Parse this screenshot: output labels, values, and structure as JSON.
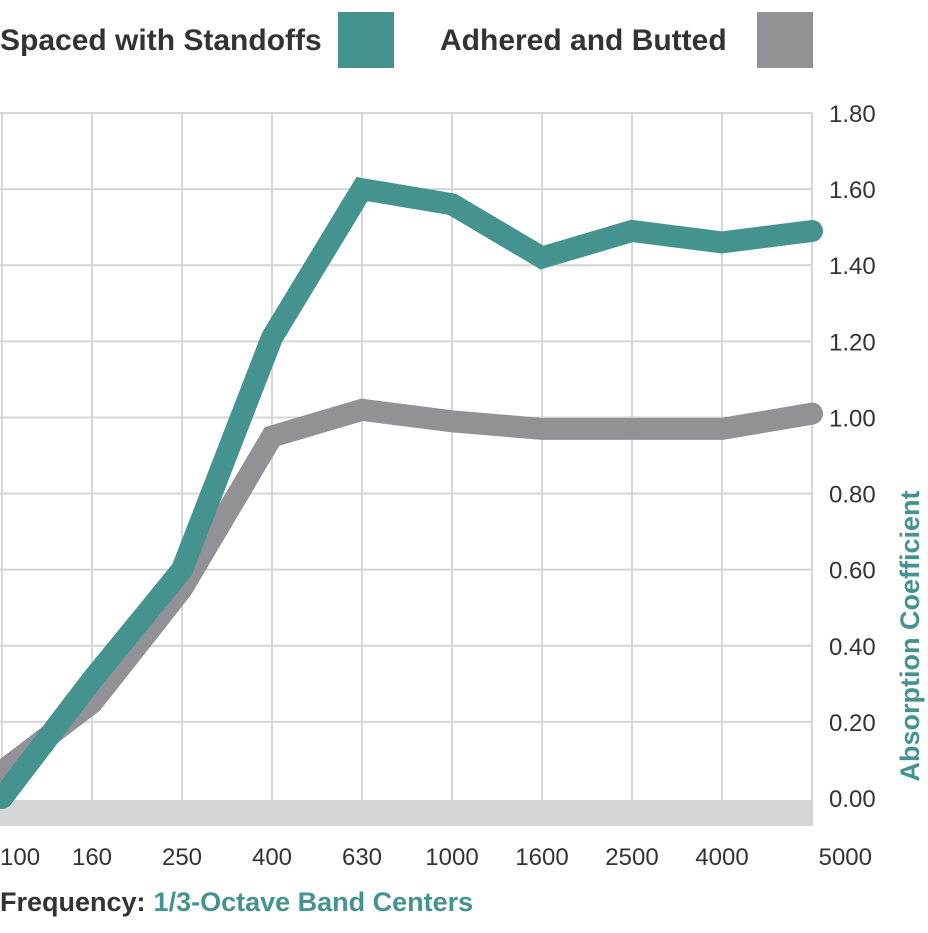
{
  "chart_data": {
    "type": "line",
    "title": "",
    "categories": [
      "100",
      "160",
      "250",
      "400",
      "630",
      "1000",
      "1600",
      "2500",
      "4000",
      "5000"
    ],
    "series": [
      {
        "name": "Spaced with Standoffs",
        "color": "#45938f",
        "values": [
          0.0,
          0.31,
          0.6,
          1.21,
          1.6,
          1.56,
          1.42,
          1.49,
          1.46,
          1.49
        ]
      },
      {
        "name": "Adhered and Butted",
        "color": "#929296",
        "values": [
          0.07,
          0.25,
          0.55,
          0.95,
          1.02,
          0.99,
          0.97,
          0.97,
          0.97,
          1.01
        ]
      }
    ],
    "y_ticks": [
      "0.00",
      "0.20",
      "0.40",
      "0.60",
      "0.80",
      "1.00",
      "1.20",
      "1.40",
      "1.60",
      "1.80"
    ],
    "ylim": [
      0,
      1.8
    ],
    "ylabel": "Absorption Coefficient",
    "xlabel_prefix": "Frequency:",
    "xlabel": "1/3-Octave Band Centers",
    "grid": true,
    "y_axis_side": "right",
    "legend_position": "top"
  },
  "colors": {
    "accent": "#45938f",
    "secondary": "#929296",
    "grid": "#d6d6d8",
    "baseline_band": "#d6d6d8",
    "text": "#333333"
  }
}
